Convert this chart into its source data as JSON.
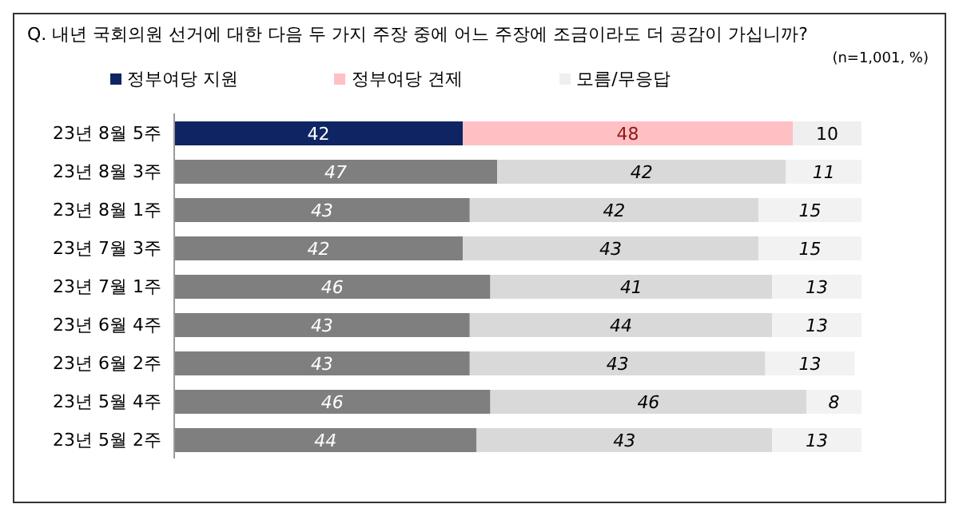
{
  "chart_data": {
    "type": "bar",
    "orientation": "horizontal",
    "stacked": true,
    "data_labels": true,
    "legend": "top",
    "grid": false,
    "title": "Q. 내년 국회의원 선거에 대한 다음 두 가지 주장 중에 어느 주장에 조금이라도 더 공감이 가십니까?",
    "annotations": [
      "(n=1,001,  %)"
    ],
    "categories": [
      "23년 8월 5주",
      "23년 8월 3주",
      "23년 8월 1주",
      "23년 7월 3주",
      "23년 7월 1주",
      "23년 6월 4주",
      "23년 6월 2주",
      "23년 5월 4주",
      "23년 5월 2주"
    ],
    "series": [
      {
        "name": "정부여당 지원",
        "color": "#0f2462",
        "colors": [
          "#0f2462",
          "#7f7f7f",
          "#7f7f7f",
          "#7f7f7f",
          "#7f7f7f",
          "#7f7f7f",
          "#7f7f7f",
          "#7f7f7f",
          "#7f7f7f"
        ],
        "values": [
          42,
          47,
          43,
          42,
          46,
          43,
          43,
          46,
          44
        ]
      },
      {
        "name": "정부여당 견제",
        "color": "#ffc0c4",
        "colors": [
          "#ffc0c4",
          "#d9d9d9",
          "#d9d9d9",
          "#d9d9d9",
          "#d9d9d9",
          "#d9d9d9",
          "#d9d9d9",
          "#d9d9d9",
          "#d9d9d9"
        ],
        "values": [
          48,
          42,
          42,
          43,
          41,
          44,
          43,
          46,
          43
        ]
      },
      {
        "name": "모름/무응답",
        "color": "#efefef",
        "colors": [
          "#efefef",
          "#f2f2f2",
          "#f2f2f2",
          "#f2f2f2",
          "#f2f2f2",
          "#f2f2f2",
          "#f2f2f2",
          "#f2f2f2",
          "#f2f2f2"
        ],
        "values": [
          10,
          11,
          15,
          15,
          13,
          13,
          13,
          8,
          13
        ]
      }
    ]
  }
}
